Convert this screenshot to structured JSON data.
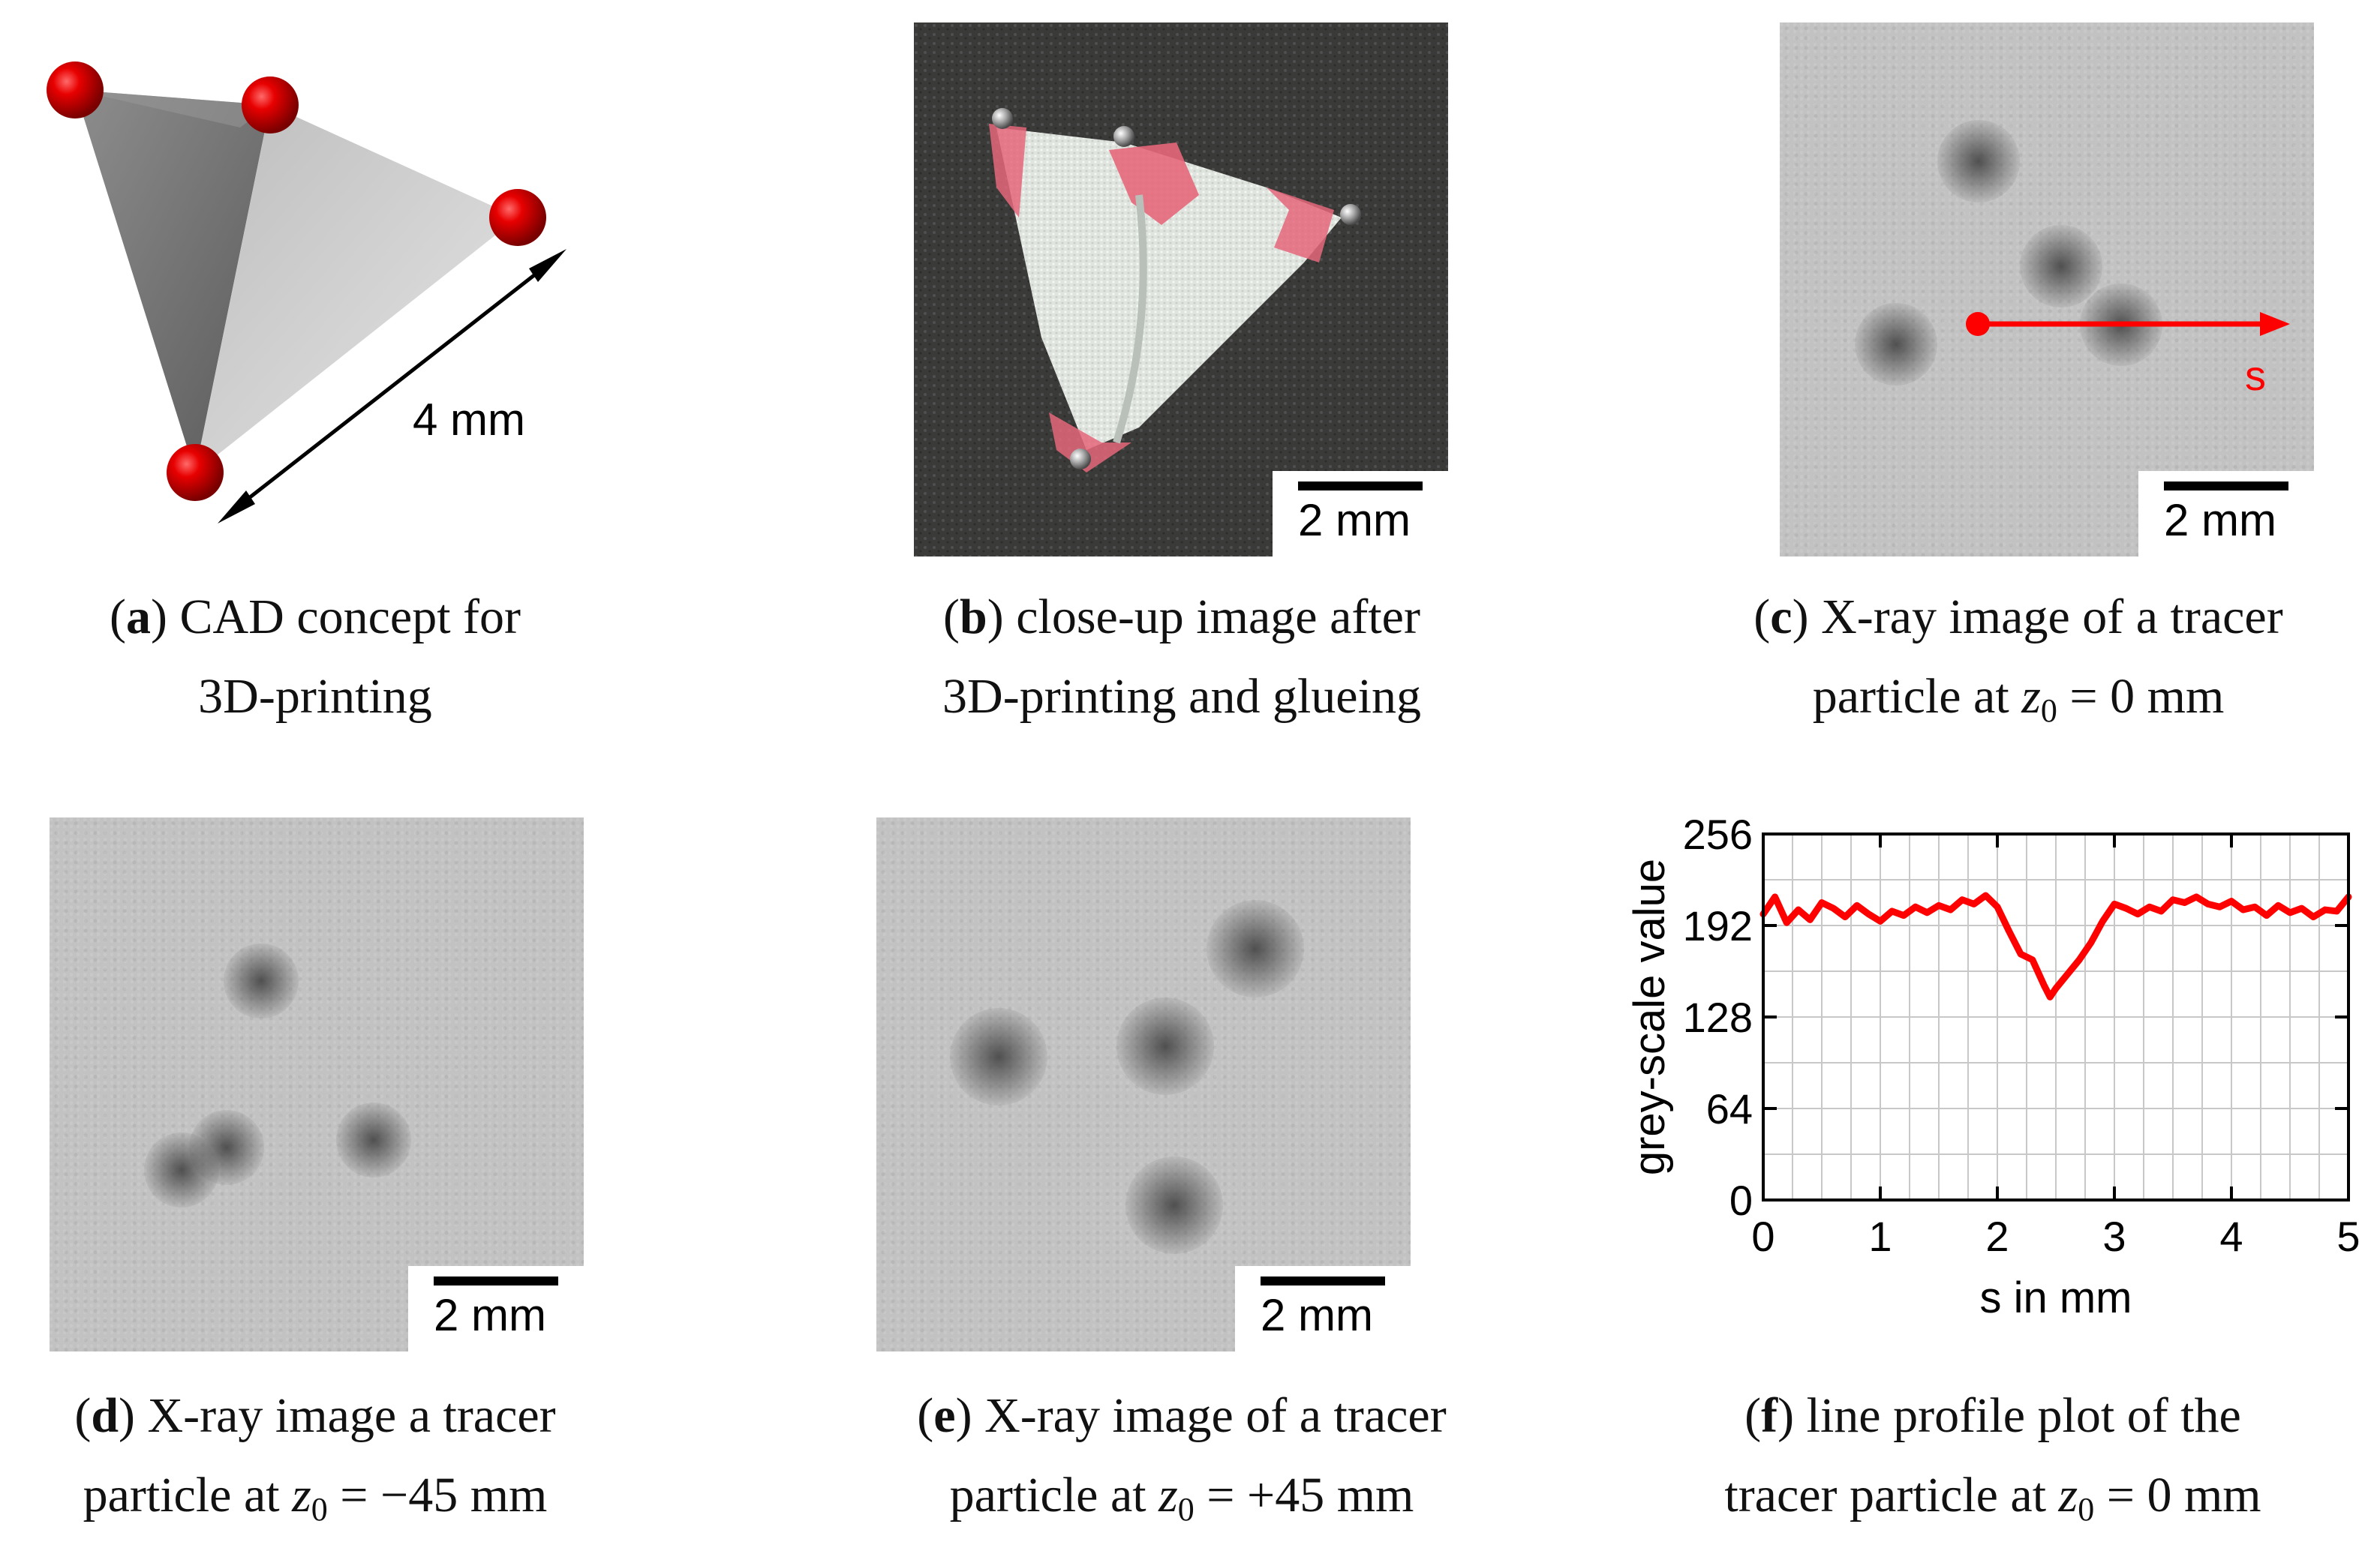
{
  "panels": {
    "a": {
      "letter": "a",
      "caption_line1": "CAD concept for",
      "caption_line2": "3D-printing",
      "dimension_label": "4 mm"
    },
    "b": {
      "letter": "b",
      "caption_line1": "close-up image after",
      "caption_line2": "3D-printing and glueing",
      "scale_label": "2 mm"
    },
    "c": {
      "letter": "c",
      "caption_line1": "X-ray image of a tracer",
      "caption_line2_prefix": "particle at ",
      "caption_var": "z",
      "caption_sub": "0",
      "caption_value": " = 0 mm",
      "scale_label": "2 mm",
      "arrow_label": "s"
    },
    "d": {
      "letter": "d",
      "caption_line1": "X-ray image a tracer",
      "caption_line2_prefix": "particle at ",
      "caption_var": "z",
      "caption_sub": "0",
      "caption_value": " = −45 mm",
      "scale_label": "2 mm"
    },
    "e": {
      "letter": "e",
      "caption_line1": "X-ray image of a tracer",
      "caption_line2_prefix": "particle at ",
      "caption_var": "z",
      "caption_sub": "0",
      "caption_value": " = +45 mm",
      "scale_label": "2 mm"
    },
    "f": {
      "letter": "f",
      "caption_line1": "line profile plot of the",
      "caption_line2_prefix": "tracer particle at ",
      "caption_var": "z",
      "caption_sub": "0",
      "caption_value": " = 0 mm"
    }
  },
  "chart_data": {
    "type": "line",
    "xlabel": "s in mm",
    "ylabel": "grey-scale value",
    "xlim": [
      0,
      5
    ],
    "ylim": [
      0,
      256
    ],
    "xticks": [
      "0",
      "1",
      "2",
      "3",
      "4",
      "5"
    ],
    "yticks": [
      "0",
      "64",
      "128",
      "192",
      "256"
    ],
    "grid": true,
    "series_color": "#ff0000",
    "x": [
      0,
      0.1,
      0.2,
      0.3,
      0.4,
      0.5,
      0.6,
      0.7,
      0.8,
      0.9,
      1.0,
      1.1,
      1.2,
      1.3,
      1.4,
      1.5,
      1.6,
      1.7,
      1.8,
      1.9,
      2.0,
      2.1,
      2.2,
      2.3,
      2.4,
      2.45,
      2.5,
      2.6,
      2.7,
      2.8,
      2.9,
      3.0,
      3.1,
      3.2,
      3.3,
      3.4,
      3.5,
      3.6,
      3.7,
      3.8,
      3.9,
      4.0,
      4.1,
      4.2,
      4.3,
      4.4,
      4.5,
      4.6,
      4.7,
      4.8,
      4.9,
      5.0
    ],
    "y": [
      200,
      212,
      194,
      203,
      196,
      208,
      204,
      198,
      206,
      200,
      195,
      202,
      199,
      205,
      201,
      206,
      203,
      210,
      207,
      213,
      205,
      188,
      172,
      168,
      150,
      142,
      148,
      158,
      168,
      180,
      195,
      207,
      204,
      200,
      205,
      202,
      210,
      208,
      212,
      207,
      205,
      209,
      203,
      205,
      199,
      206,
      201,
      204,
      198,
      203,
      202,
      212
    ]
  }
}
